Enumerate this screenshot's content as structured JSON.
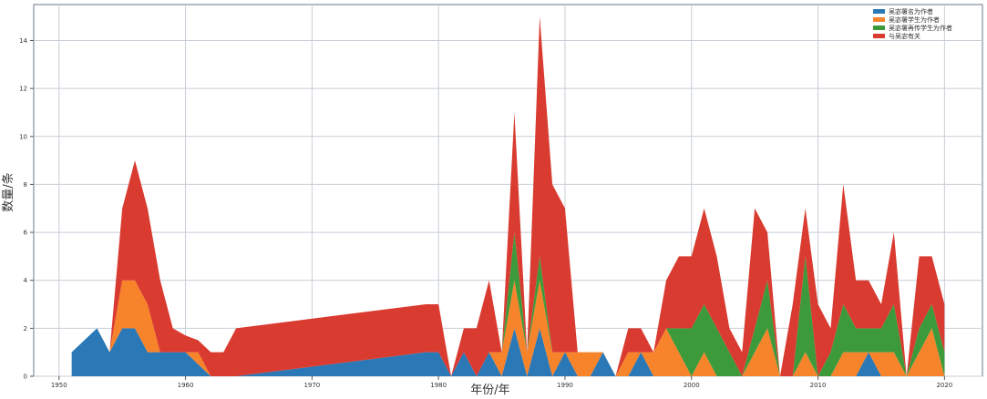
{
  "chart_data": {
    "type": "area",
    "stacked": true,
    "title": "",
    "xlabel": "年份/年",
    "ylabel": "数量/条",
    "xlim": [
      1948,
      2023
    ],
    "ylim": [
      0,
      15.5
    ],
    "xticks": [
      1950,
      1960,
      1970,
      1980,
      1990,
      2000,
      2010,
      2020
    ],
    "yticks": [
      0,
      2,
      4,
      6,
      8,
      10,
      12,
      14
    ],
    "grid": true,
    "legend_position": "top-right",
    "x": [
      1951,
      1952,
      1953,
      1954,
      1955,
      1956,
      1957,
      1958,
      1959,
      1960,
      1961,
      1962,
      1963,
      1964,
      1979,
      1980,
      1981,
      1982,
      1983,
      1984,
      1985,
      1986,
      1987,
      1988,
      1989,
      1990,
      1991,
      1992,
      1993,
      1994,
      1995,
      1996,
      1997,
      1998,
      1999,
      2000,
      2001,
      2002,
      2003,
      2004,
      2005,
      2006,
      2007,
      2008,
      2009,
      2010,
      2011,
      2012,
      2013,
      2014,
      2015,
      2016,
      2017,
      2018,
      2019,
      2020
    ],
    "series": [
      {
        "name": "吴宓署名为作者",
        "color": "#2a78b5",
        "values": [
          1,
          1.5,
          2,
          1,
          2,
          2,
          1,
          1,
          1,
          1,
          0.5,
          0,
          0,
          0,
          1,
          1,
          0,
          1,
          0,
          1,
          0,
          2,
          0,
          2,
          0,
          1,
          0,
          0,
          1,
          0,
          0,
          1,
          0,
          0,
          0,
          0,
          0,
          0,
          0,
          0,
          0,
          0,
          0,
          0,
          0,
          0,
          0,
          0,
          0,
          1,
          0,
          0,
          0,
          0,
          0,
          0
        ]
      },
      {
        "name": "吴宓署学生为作者",
        "color": "#f7832b",
        "values": [
          0,
          0,
          0,
          0,
          2,
          2,
          2,
          0,
          0,
          0,
          0.5,
          0,
          0,
          0,
          0,
          0,
          0,
          0,
          0,
          0,
          1,
          2,
          1,
          2,
          1,
          0,
          1,
          1,
          0,
          0,
          1,
          0,
          1,
          2,
          1,
          0,
          1,
          0,
          0,
          0,
          1,
          2,
          0,
          0,
          1,
          0,
          0,
          1,
          1,
          0,
          1,
          1,
          0,
          1,
          2,
          0
        ]
      },
      {
        "name": "吴宓署再传学生为作者",
        "color": "#3d9a3a",
        "values": [
          0,
          0,
          0,
          0,
          0,
          0,
          0,
          0,
          0,
          0,
          0,
          0,
          0,
          0,
          0,
          0,
          0,
          0,
          0,
          0,
          0,
          2,
          0,
          1,
          0,
          0,
          0,
          0,
          0,
          0,
          0,
          0,
          0,
          0,
          1,
          2,
          2,
          2,
          1,
          0,
          1,
          2,
          0,
          0,
          4,
          0,
          1,
          2,
          1,
          1,
          1,
          2,
          0,
          1,
          1,
          1
        ]
      },
      {
        "name": "与吴宓有关",
        "color": "#d93b30",
        "values": [
          0,
          0,
          0,
          0,
          3,
          5,
          4,
          3,
          1,
          0.7,
          0.5,
          1,
          1,
          2,
          2,
          2,
          0,
          1,
          2,
          3,
          0,
          5,
          0,
          10,
          7,
          6,
          0,
          0,
          0,
          0,
          1,
          1,
          0,
          2,
          3,
          3,
          4,
          3,
          1,
          1,
          5,
          2,
          0,
          3,
          2,
          3,
          1,
          5,
          2,
          2,
          1,
          3,
          0,
          3,
          2,
          2
        ]
      }
    ]
  }
}
